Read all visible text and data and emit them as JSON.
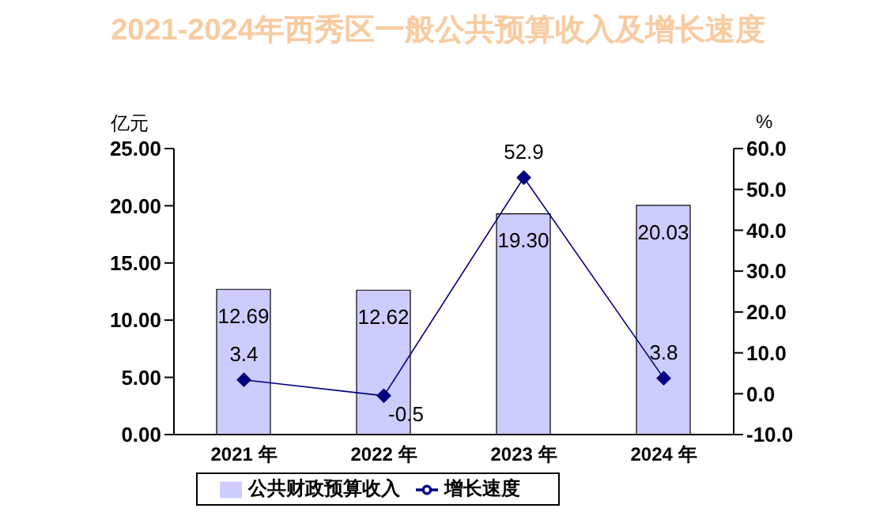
{
  "chart_data": {
    "type": "bar",
    "title": "2021-2024年西秀区一般公共预算收入及增长速度",
    "ylabel": "亿元",
    "y2label": "%",
    "categories": [
      "2021 年",
      "2022 年",
      "2023 年",
      "2024 年"
    ],
    "series": [
      {
        "name": "公共财政预算收入",
        "color": "#ccccff",
        "values": [
          12.69,
          12.62,
          19.3,
          20.03
        ],
        "value_labels": [
          "12.69",
          "12.62",
          "19.30",
          "20.03"
        ]
      },
      {
        "name": "增长速度",
        "type": "line",
        "axis": "y2",
        "color": "#000080",
        "marker": "diamond",
        "values": [
          3.4,
          -0.5,
          52.9,
          3.8
        ],
        "value_labels": [
          "3.4",
          "-0.5",
          "52.9",
          "3.8"
        ]
      }
    ],
    "ylim": [
      0,
      25
    ],
    "yticks": [
      {
        "value": 0,
        "label": "0.00"
      },
      {
        "value": 5,
        "label": "5.00"
      },
      {
        "value": 10,
        "label": "10.00"
      },
      {
        "value": 15,
        "label": "15.00"
      },
      {
        "value": 20,
        "label": "20.00"
      },
      {
        "value": 25,
        "label": "25.00"
      }
    ],
    "y2lim": [
      -10,
      60
    ],
    "y2ticks": [
      {
        "value": -10,
        "label": "-10.0"
      },
      {
        "value": 0,
        "label": "0.0"
      },
      {
        "value": 10,
        "label": "10.0"
      },
      {
        "value": 20,
        "label": "20.0"
      },
      {
        "value": 30,
        "label": "30.0"
      },
      {
        "value": 40,
        "label": "40.0"
      },
      {
        "value": 50,
        "label": "50.0"
      },
      {
        "value": 60,
        "label": "60.0"
      }
    ],
    "grid": false,
    "legend": "bottom"
  }
}
